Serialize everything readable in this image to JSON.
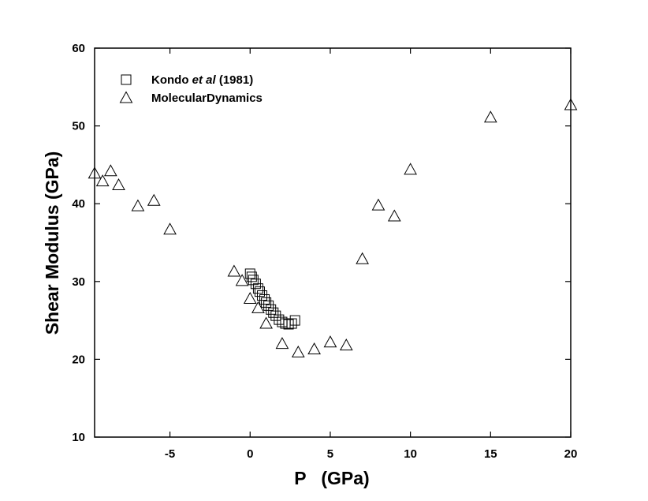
{
  "chart_data": {
    "type": "scatter",
    "xlabel": "P   (GPa)",
    "ylabel": "Shear Modulus (GPa)",
    "xlim": [
      -9.7,
      20
    ],
    "ylim": [
      10,
      60
    ],
    "xticks": [
      -5,
      0,
      5,
      10,
      15,
      20
    ],
    "xtick_labels": [
      "-5",
      "0",
      "5",
      "10",
      "15",
      "20"
    ],
    "yticks": [
      10,
      20,
      30,
      40,
      50,
      60
    ],
    "ytick_labels": [
      "10",
      "20",
      "30",
      "40",
      "50",
      "60"
    ],
    "grid": false,
    "legend": {
      "placement": "top-left",
      "entries": [
        {
          "prefix": "Kondo ",
          "italic": "et al",
          "suffix": " (1981)",
          "marker": "square"
        },
        {
          "prefix": "MolecularDynamics",
          "italic": "",
          "suffix": "",
          "marker": "triangle"
        }
      ]
    },
    "series": [
      {
        "marker": "square",
        "x": [
          0.0,
          0.1,
          0.2,
          0.35,
          0.5,
          0.6,
          0.75,
          0.9,
          1.0,
          1.15,
          1.3,
          1.45,
          1.6,
          1.8,
          2.0,
          2.2,
          2.4,
          2.6,
          2.8
        ],
        "y": [
          31.0,
          30.6,
          30.2,
          29.7,
          29.1,
          28.7,
          28.2,
          27.7,
          27.3,
          26.9,
          26.4,
          26.0,
          25.6,
          25.1,
          24.8,
          24.6,
          24.5,
          24.6,
          25.0
        ]
      },
      {
        "marker": "triangle",
        "x": [
          -9.7,
          -9.2,
          -8.7,
          -8.2,
          -7.0,
          -6.0,
          -5.0,
          -1.0,
          -0.5,
          0.0,
          0.5,
          1.0,
          2.0,
          3.0,
          4.0,
          5.0,
          6.0,
          7.0,
          8.0,
          9.0,
          10.0,
          15.0,
          20.0
        ],
        "y": [
          43.9,
          42.9,
          44.2,
          42.4,
          39.7,
          40.4,
          36.7,
          31.3,
          30.1,
          27.8,
          26.6,
          24.6,
          22.0,
          20.9,
          21.3,
          22.2,
          21.8,
          32.9,
          39.8,
          38.4,
          44.4,
          51.1,
          52.7
        ]
      }
    ]
  }
}
